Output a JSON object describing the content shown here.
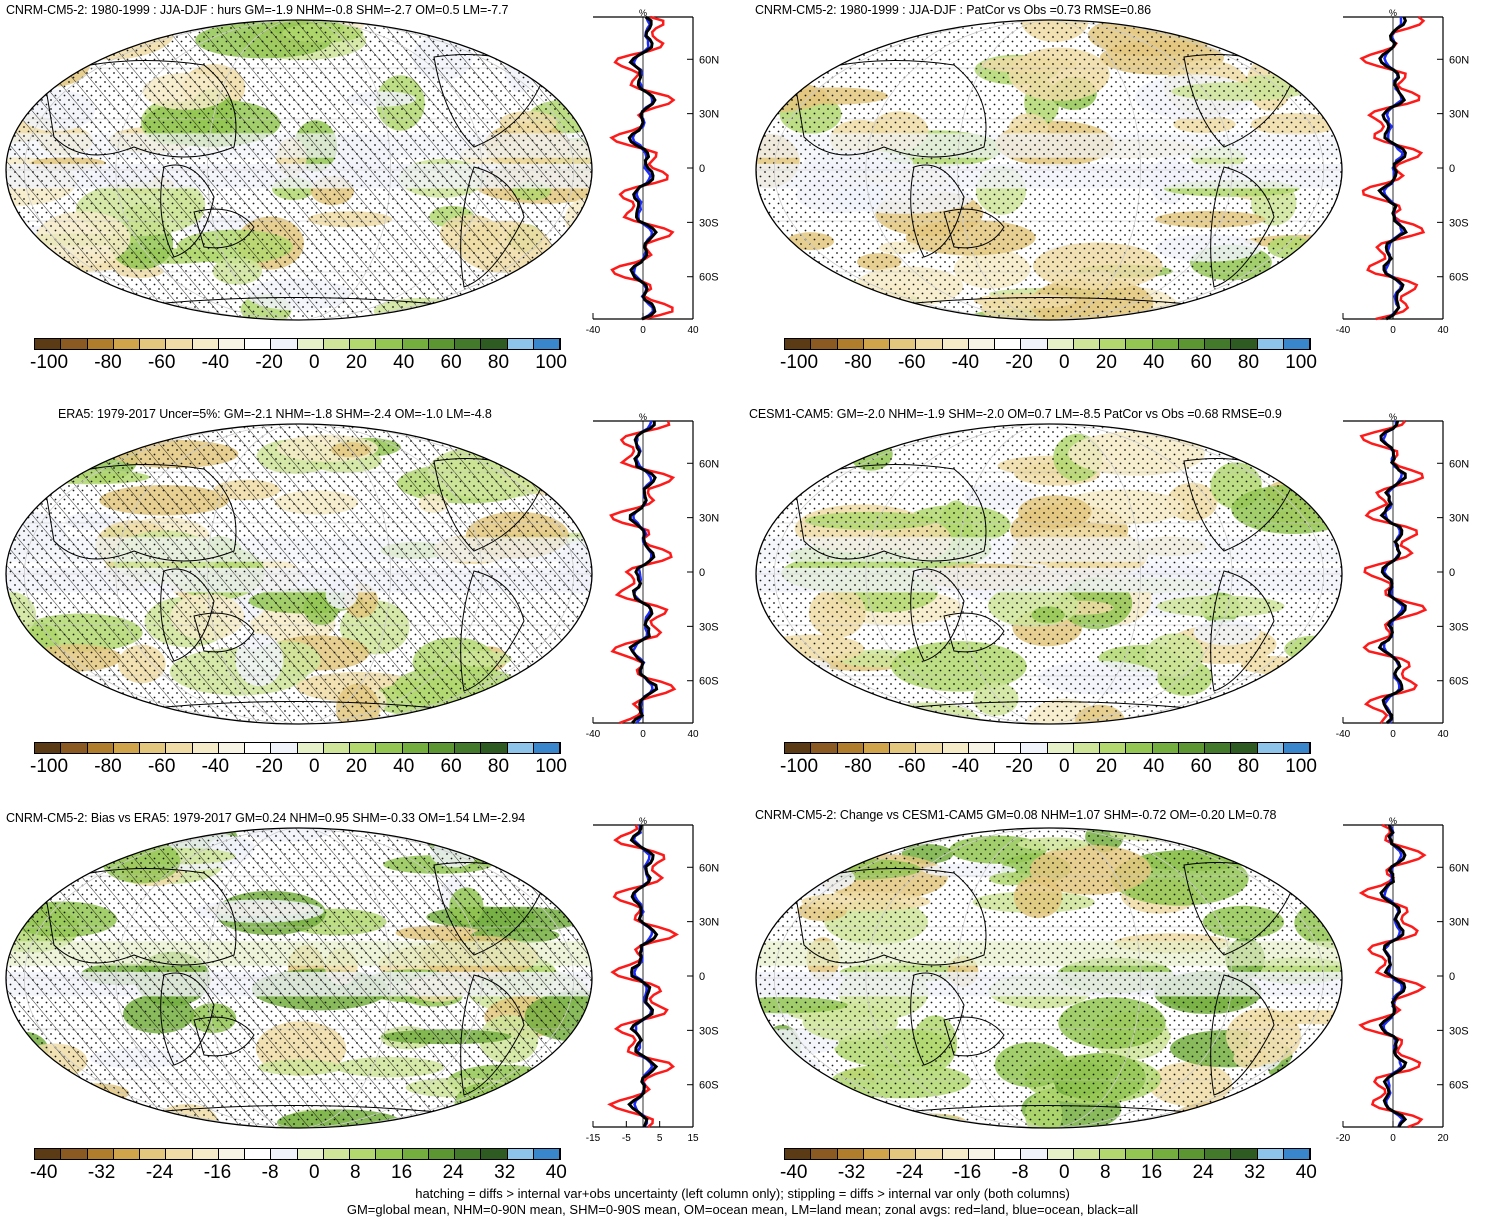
{
  "panels": [
    {
      "id": "p1",
      "title": "CNRM-CM5-2: 1980-1999 : JJA-DJF : hurs GM=-1.9 NHM=-0.8 SHM=-2.7 OM=0.5 LM=-7.7",
      "colorbar": [
        "-100",
        "-80",
        "-60",
        "-40",
        "-20",
        "0",
        "20",
        "40",
        "60",
        "80",
        "100"
      ],
      "zonal_x_ticks": [
        "-40",
        "0",
        "40"
      ],
      "zonal_y_ticks": [
        "60N",
        "30N",
        "0",
        "30S",
        "60S"
      ],
      "zonal_unit": "%",
      "hatched": true
    },
    {
      "id": "p2",
      "title": "CNRM-CM5-2: 1980-1999 : JJA-DJF : PatCor vs Obs =0.73 RMSE=0.86",
      "colorbar": [
        "-100",
        "-80",
        "-60",
        "-40",
        "-20",
        "0",
        "20",
        "40",
        "60",
        "80",
        "100"
      ],
      "zonal_x_ticks": [
        "-40",
        "0",
        "40"
      ],
      "zonal_y_ticks": [
        "60N",
        "30N",
        "0",
        "30S",
        "60S"
      ],
      "zonal_unit": "%",
      "hatched": false
    },
    {
      "id": "p3",
      "title": "ERA5: 1979-2017 Uncer=5%: GM=-2.1 NHM=-1.8 SHM=-2.4 OM=-1.0 LM=-4.8",
      "colorbar": [
        "-100",
        "-80",
        "-60",
        "-40",
        "-20",
        "0",
        "20",
        "40",
        "60",
        "80",
        "100"
      ],
      "zonal_x_ticks": [
        "-40",
        "0",
        "40"
      ],
      "zonal_y_ticks": [
        "60N",
        "30N",
        "0",
        "30S",
        "60S"
      ],
      "zonal_unit": "%",
      "hatched": true
    },
    {
      "id": "p4",
      "title": "CESM1-CAM5: GM=-2.0 NHM=-1.9 SHM=-2.0 OM=0.7 LM=-8.5 PatCor vs Obs =0.68 RMSE=0.9",
      "colorbar": [
        "-100",
        "-80",
        "-60",
        "-40",
        "-20",
        "0",
        "20",
        "40",
        "60",
        "80",
        "100"
      ],
      "zonal_x_ticks": [
        "-40",
        "0",
        "40"
      ],
      "zonal_y_ticks": [
        "60N",
        "30N",
        "0",
        "30S",
        "60S"
      ],
      "zonal_unit": "%",
      "hatched": false
    },
    {
      "id": "p5",
      "title": "CNRM-CM5-2: Bias vs ERA5: 1979-2017 GM=0.24 NHM=0.95 SHM=-0.33 OM=1.54 LM=-2.94",
      "colorbar": [
        "-40",
        "-32",
        "-24",
        "-16",
        "-8",
        "0",
        "8",
        "16",
        "24",
        "32",
        "40"
      ],
      "zonal_x_ticks": [
        "-15",
        "-5",
        "5",
        "15"
      ],
      "zonal_y_ticks": [
        "60N",
        "30N",
        "0",
        "30S",
        "60S"
      ],
      "zonal_unit": "%",
      "hatched": true
    },
    {
      "id": "p6",
      "title": "CNRM-CM5-2: Change vs CESM1-CAM5 GM=0.08 NHM=1.07 SHM=-0.72 OM=-0.20 LM=0.78",
      "colorbar": [
        "-40",
        "-32",
        "-24",
        "-16",
        "-8",
        "0",
        "8",
        "16",
        "24",
        "32",
        "40"
      ],
      "zonal_x_ticks": [
        "-20",
        "0",
        "20"
      ],
      "zonal_y_ticks": [
        "60N",
        "30N",
        "0",
        "30S",
        "60S"
      ],
      "zonal_unit": "%",
      "hatched": false
    }
  ],
  "colors": {
    "palette": [
      "#5a3b16",
      "#8a5a22",
      "#b07d2c",
      "#cfa44a",
      "#e3c77e",
      "#efdca6",
      "#f6ebc8",
      "#f7f4e6",
      "#ffffff",
      "#f1f3fa",
      "#e6f0c9",
      "#cfe59a",
      "#b2d86f",
      "#93c652",
      "#74ae3f",
      "#5b9633",
      "#43792a",
      "#2d5b21",
      "#8ec4ea",
      "#3a86cc"
    ],
    "land_line": "#ff1a1a",
    "ocean_line": "#1a2cff",
    "all_line": "#000000"
  },
  "footnote": {
    "line1": "hatching = diffs > internal var+obs uncertainty (left column only); stippling = diffs > internal var only (both columns)",
    "line2": "GM=global mean, NHM=0-90N mean, SHM=0-90S mean, OM=ocean mean, LM=land mean; zonal avgs: red=land, blue=ocean, black=all"
  }
}
